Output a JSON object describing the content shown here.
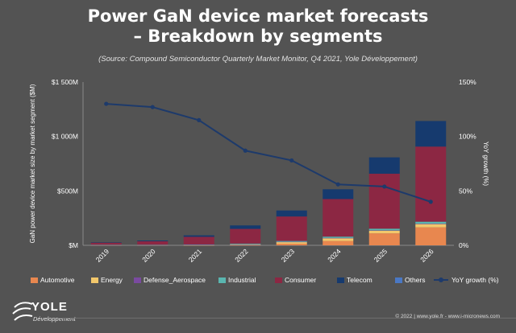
{
  "page": {
    "title_line1": "Power GaN device market forecasts",
    "title_line2": "– Breakdown by segments",
    "subtitle": "(Source: Compound Semiconductor Quarterly Market Monitor, Q4 2021, Yole Développement)",
    "footer": "© 2022 | www.yole.fr - www.i-micronews.com",
    "logo_name": "YOLE",
    "logo_sub": "Développement"
  },
  "chart_data": {
    "type": "bar",
    "stacked": true,
    "categories": [
      "2019",
      "2020",
      "2021",
      "2022",
      "2023",
      "2024",
      "2025",
      "2026"
    ],
    "ylabel": "GaN power device market size by market segment ($M)",
    "y2label": "YoY growth (%)",
    "ylim": [
      0,
      1500
    ],
    "y2lim": [
      0,
      150
    ],
    "yticks": [
      "$M",
      "$500M",
      "$1 000M",
      "$1 500M"
    ],
    "ytick_values": [
      0,
      500,
      1000,
      1500
    ],
    "y2ticks": [
      "0%",
      "50%",
      "100%",
      "150%"
    ],
    "y2tick_values": [
      0,
      50,
      100,
      150
    ],
    "legend_position": "bottom",
    "series": [
      {
        "name": "Automotive",
        "color": "#e8874f",
        "values": [
          0,
          0,
          1,
          3,
          15,
          40,
          110,
          165
        ]
      },
      {
        "name": "Energy",
        "color": "#f2c76b",
        "values": [
          1,
          1,
          2,
          4,
          15,
          25,
          25,
          30
        ]
      },
      {
        "name": "Defense_Aerospace",
        "color": "#7a4aa0",
        "values": [
          1,
          1,
          1,
          2,
          2,
          3,
          3,
          4
        ]
      },
      {
        "name": "Industrial",
        "color": "#5ab6b0",
        "values": [
          2,
          3,
          4,
          7,
          8,
          12,
          15,
          18
        ]
      },
      {
        "name": "Consumer",
        "color": "#8c2743",
        "values": [
          20,
          32,
          70,
          135,
          225,
          345,
          505,
          690
        ]
      },
      {
        "name": "Telecom",
        "color": "#163a6e",
        "values": [
          4,
          7,
          14,
          32,
          55,
          90,
          150,
          235
        ]
      },
      {
        "name": "Others",
        "color": "#4a78c4",
        "values": [
          0,
          0,
          0,
          0,
          0,
          0,
          0,
          0
        ]
      }
    ],
    "line_series": {
      "name": "YoY growth (%)",
      "color": "#1d3a6b",
      "axis": "y2",
      "values": [
        130,
        127,
        115,
        87,
        78,
        56,
        54,
        40
      ]
    }
  }
}
